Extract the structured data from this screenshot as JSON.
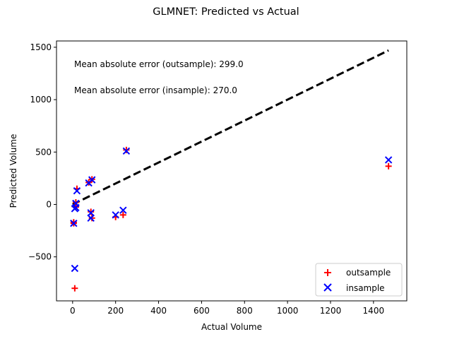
{
  "chart_data": {
    "type": "scatter",
    "title": "GLMNET: Predicted vs Actual",
    "xlabel": "Actual Volume",
    "ylabel": "Predicted Volume",
    "xlim": [
      -75,
      1555
    ],
    "ylim": [
      -920,
      1560
    ],
    "xticks": [
      0,
      200,
      400,
      600,
      800,
      1000,
      1200,
      1400
    ],
    "yticks": [
      -500,
      0,
      500,
      1000,
      1500
    ],
    "ytick_labels": [
      "−500",
      "0",
      "500",
      "1000",
      "1500"
    ],
    "grid": false,
    "legend_position": "lower-right",
    "annotations": [
      {
        "text": "Mean absolute error (outsample): 299.0",
        "x": 0,
        "y": 1370
      },
      {
        "text": "Mean absolute error (insample): 270.0",
        "x": 0,
        "y": 1120
      }
    ],
    "reference_line": {
      "x": [
        0,
        1470
      ],
      "y": [
        0,
        1470
      ],
      "color": "#000000",
      "style": "dashed"
    },
    "series": [
      {
        "name": "outsample",
        "marker": "plus",
        "color": "#ff0000",
        "x": [
          20,
          15,
          10,
          5,
          15,
          5,
          75,
          90,
          85,
          90,
          200,
          235,
          250,
          10,
          1470
        ],
        "y": [
          150,
          20,
          -20,
          -180,
          -25,
          -170,
          210,
          240,
          -70,
          -130,
          -120,
          -100,
          520,
          -800,
          365
        ]
      },
      {
        "name": "insample",
        "marker": "x",
        "color": "#0000ff",
        "x": [
          20,
          15,
          15,
          10,
          5,
          75,
          90,
          85,
          85,
          200,
          235,
          250,
          10,
          1470
        ],
        "y": [
          130,
          10,
          -30,
          -40,
          -180,
          205,
          235,
          -80,
          -130,
          -100,
          -55,
          510,
          -610,
          425
        ]
      }
    ]
  }
}
